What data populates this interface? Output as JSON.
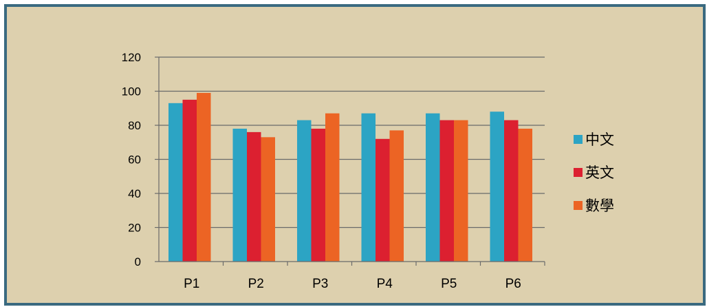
{
  "chart_data": {
    "type": "bar",
    "categories": [
      "P1",
      "P2",
      "P3",
      "P4",
      "P5",
      "P6"
    ],
    "series": [
      {
        "name": "中文",
        "values": [
          93,
          78,
          83,
          87,
          87,
          88
        ],
        "color": "#2ca4c4"
      },
      {
        "name": "英文",
        "values": [
          95,
          76,
          78,
          72,
          83,
          83
        ],
        "color": "#dc2030"
      },
      {
        "name": "數學",
        "values": [
          99,
          73,
          87,
          77,
          83,
          78
        ],
        "color": "#ec6424"
      }
    ],
    "yticks": [
      "0",
      "20",
      "40",
      "60",
      "80",
      "100",
      "120"
    ],
    "ylim": [
      0,
      120
    ],
    "grid": true,
    "legend_position": "right",
    "background": "#ddd0ae",
    "border_color": "#3a6a80"
  }
}
